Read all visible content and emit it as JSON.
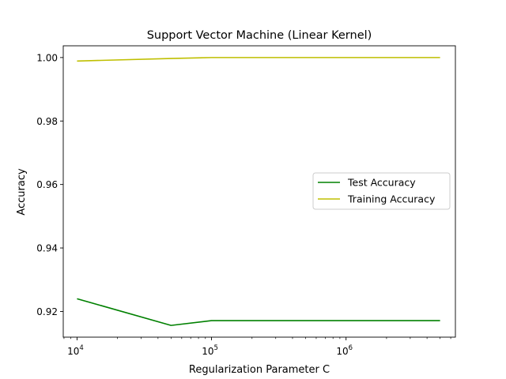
{
  "chart_data": {
    "type": "line",
    "title": "Support Vector Machine (Linear Kernel)",
    "xlabel": "Regularization Parameter C",
    "ylabel": "Accuracy",
    "xscale": "log",
    "xlim": [
      7900,
      6500000
    ],
    "ylim": [
      0.9119,
      1.0037
    ],
    "x_ticks": [
      {
        "value": 10000,
        "base": "10",
        "exp": "4"
      },
      {
        "value": 100000,
        "base": "10",
        "exp": "5"
      },
      {
        "value": 1000000,
        "base": "10",
        "exp": "6"
      }
    ],
    "y_ticks": [
      {
        "value": 0.92,
        "label": "0.92"
      },
      {
        "value": 0.94,
        "label": "0.94"
      },
      {
        "value": 0.96,
        "label": "0.96"
      },
      {
        "value": 0.98,
        "label": "0.98"
      },
      {
        "value": 1.0,
        "label": "1.00"
      }
    ],
    "series": [
      {
        "name": "Test Accuracy",
        "color": "#008000",
        "x": [
          10000,
          50000,
          100000,
          500000,
          1000000,
          5000000
        ],
        "y": [
          0.924,
          0.9156,
          0.9171,
          0.9171,
          0.9171,
          0.9171
        ]
      },
      {
        "name": "Training Accuracy",
        "color": "#bfbf00",
        "x": [
          10000,
          50000,
          100000,
          500000,
          1000000,
          5000000
        ],
        "y": [
          0.9989,
          0.9997,
          1.0,
          1.0,
          1.0,
          1.0
        ]
      }
    ],
    "legend_position": "center-right",
    "grid": false
  }
}
